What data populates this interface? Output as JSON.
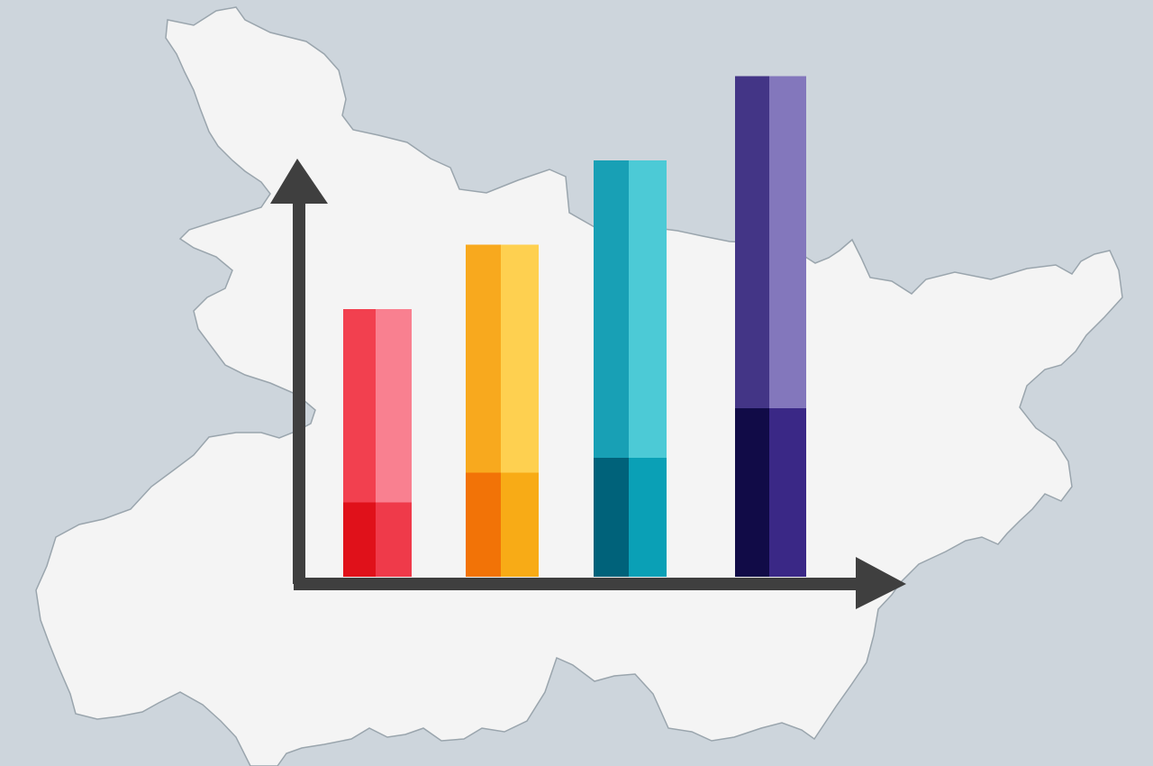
{
  "colors": {
    "background": "#cdd5dc",
    "map_fill": "#f4f4f4",
    "map_stroke": "#9aa5ad",
    "axis": "#3f3f3f"
  },
  "chart_data": {
    "type": "bar",
    "stacked": true,
    "categories": [
      "",
      "",
      "",
      ""
    ],
    "ylim": [
      0,
      100
    ],
    "grid": false,
    "legend": "none",
    "series": [
      {
        "values": [
          15,
          21,
          24,
          34
        ],
        "colors": [
          "#e0111a",
          "#f27307",
          "#00627a",
          "#110b47"
        ],
        "highlight_colors": [
          "#ef3a4a",
          "#f8ab16",
          "#0aa0b6",
          "#3a2886"
        ]
      },
      {
        "values": [
          39,
          46,
          60,
          67
        ],
        "colors": [
          "#f2404f",
          "#f8a91e",
          "#18a0b5",
          "#433586"
        ],
        "highlight_colors": [
          "#f98090",
          "#fed050",
          "#4ccad6",
          "#8377bc"
        ]
      }
    ]
  }
}
